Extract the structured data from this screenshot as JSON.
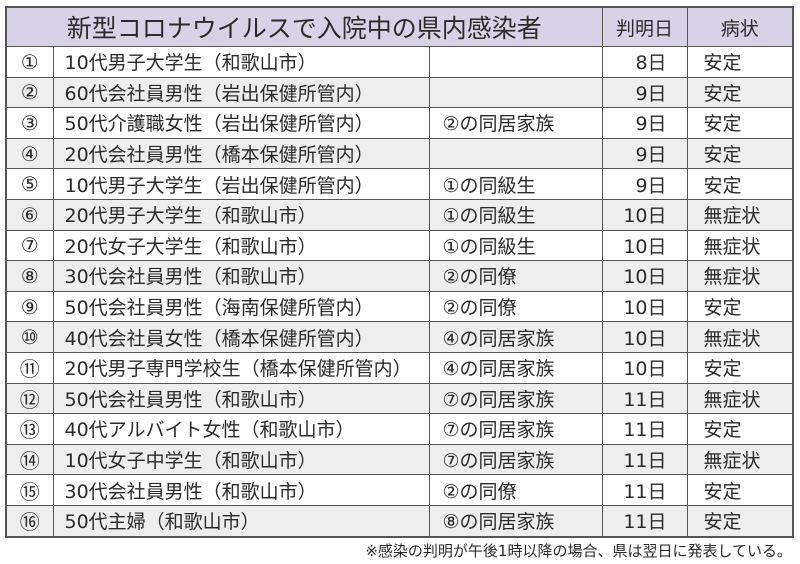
{
  "table": {
    "title": "新型コロナウイルスで入院中の県内感染者",
    "headers": {
      "date": "判明日",
      "status": "病状"
    },
    "colors": {
      "header_bg": "#d8d2e6",
      "row_alt_bg": "#eeeeee",
      "border": "#555555"
    },
    "rows": [
      {
        "num": "①",
        "desc": "10代男子大学生（和歌山市）",
        "relation": "",
        "date": "8日",
        "status": "安定"
      },
      {
        "num": "②",
        "desc": "60代会社員男性（岩出保健所管内）",
        "relation": "",
        "date": "9日",
        "status": "安定"
      },
      {
        "num": "③",
        "desc": "50代介護職女性（岩出保健所管内）",
        "relation": "②の同居家族",
        "date": "9日",
        "status": "安定"
      },
      {
        "num": "④",
        "desc": "20代会社員男性（橋本保健所管内）",
        "relation": "",
        "date": "9日",
        "status": "安定"
      },
      {
        "num": "⑤",
        "desc": "10代男子大学生（岩出保健所管内）",
        "relation": "①の同級生",
        "date": "9日",
        "status": "安定"
      },
      {
        "num": "⑥",
        "desc": "20代男子大学生（和歌山市）",
        "relation": "①の同級生",
        "date": "10日",
        "status": "無症状"
      },
      {
        "num": "⑦",
        "desc": "20代女子大学生（和歌山市）",
        "relation": "①の同級生",
        "date": "10日",
        "status": "無症状"
      },
      {
        "num": "⑧",
        "desc": "30代会社員男性（和歌山市）",
        "relation": "②の同僚",
        "date": "10日",
        "status": "無症状"
      },
      {
        "num": "⑨",
        "desc": "50代会社員男性（海南保健所管内）",
        "relation": "②の同僚",
        "date": "10日",
        "status": "安定"
      },
      {
        "num": "⑩",
        "desc": "40代会社員女性（橋本保健所管内）",
        "relation": "④の同居家族",
        "date": "10日",
        "status": "無症状"
      },
      {
        "num": "⑪",
        "desc": "20代男子専門学校生（橋本保健所管内）",
        "relation": "④の同居家族",
        "date": "10日",
        "status": "安定"
      },
      {
        "num": "⑫",
        "desc": "50代会社員男性（和歌山市）",
        "relation": "⑦の同居家族",
        "date": "11日",
        "status": "無症状"
      },
      {
        "num": "⑬",
        "desc": "40代アルバイト女性（和歌山市）",
        "relation": "⑦の同居家族",
        "date": "11日",
        "status": "安定"
      },
      {
        "num": "⑭",
        "desc": "10代女子中学生（和歌山市）",
        "relation": "⑦の同居家族",
        "date": "11日",
        "status": "無症状"
      },
      {
        "num": "⑮",
        "desc": "30代会社員男性（和歌山市）",
        "relation": "②の同僚",
        "date": "11日",
        "status": "安定"
      },
      {
        "num": "⑯",
        "desc": "50代主婦（和歌山市）",
        "relation": "⑧の同居家族",
        "date": "11日",
        "status": "安定"
      }
    ]
  },
  "footnote": "※感染の判明が午後1時以降の場合、県は翌日に発表している。"
}
